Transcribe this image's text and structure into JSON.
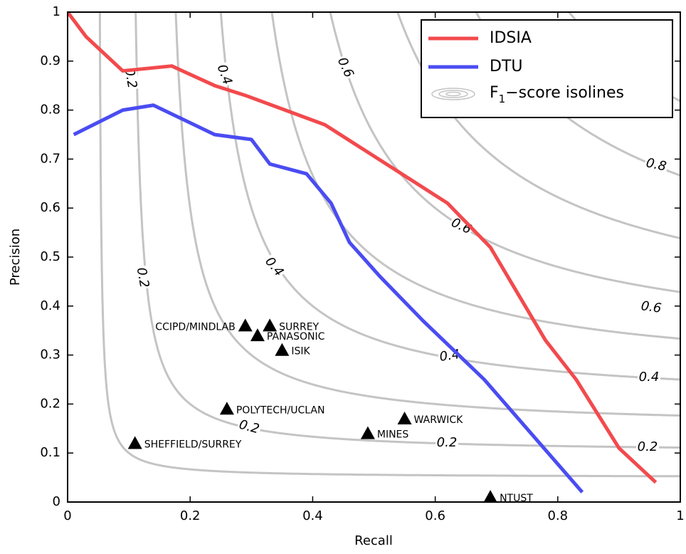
{
  "chart_data": {
    "type": "line",
    "x_label": "Recall",
    "y_label": "Precision",
    "xlim": [
      0,
      1
    ],
    "ylim": [
      0,
      1
    ],
    "xticks": [
      0,
      0.2,
      0.4,
      0.6,
      0.8,
      1
    ],
    "yticks": [
      0,
      0.1,
      0.2,
      0.3,
      0.4,
      0.5,
      0.6,
      0.7,
      0.8,
      0.9,
      1
    ],
    "legend_position": "upper right",
    "series": [
      {
        "name": "IDSIA",
        "color": "#f24a4d",
        "x": [
          0,
          0.03,
          0.09,
          0.17,
          0.24,
          0.29,
          0.42,
          0.52,
          0.62,
          0.69,
          0.78,
          0.83,
          0.9,
          0.96
        ],
        "values": [
          1,
          0.95,
          0.88,
          0.89,
          0.85,
          0.83,
          0.77,
          0.69,
          0.61,
          0.52,
          0.33,
          0.25,
          0.11,
          0.04
        ]
      },
      {
        "name": "DTU",
        "color": "#4a4cf2",
        "x": [
          0.01,
          0.09,
          0.14,
          0.24,
          0.3,
          0.33,
          0.39,
          0.43,
          0.46,
          0.51,
          0.58,
          0.68,
          0.84
        ],
        "values": [
          0.75,
          0.8,
          0.81,
          0.75,
          0.74,
          0.69,
          0.67,
          0.61,
          0.53,
          0.46,
          0.37,
          0.25,
          0.02
        ]
      }
    ],
    "isolines": {
      "color": "#c4c4c4",
      "values": [
        0.1,
        0.2,
        0.3,
        0.4,
        0.5,
        0.6,
        0.7,
        0.8,
        0.9
      ],
      "labels": [
        0.2,
        0.4,
        0.6,
        0.8
      ],
      "legend": {
        "main": "F",
        "sub": "1",
        "rest": "−score isolines"
      }
    },
    "points": {
      "color": "#000000",
      "labels": [
        "CCIPD/MINDLAB",
        "SURREY",
        "PANASONIC",
        "ISIK",
        "POLYTECH/UCLAN",
        "SHEFFIELD/SURREY",
        "MINES",
        "WARWICK",
        "NTUST"
      ],
      "x": [
        0.29,
        0.33,
        0.31,
        0.35,
        0.26,
        0.11,
        0.49,
        0.55,
        0.69
      ],
      "values": [
        0.36,
        0.36,
        0.34,
        0.31,
        0.19,
        0.12,
        0.14,
        0.17,
        0.01
      ]
    }
  }
}
